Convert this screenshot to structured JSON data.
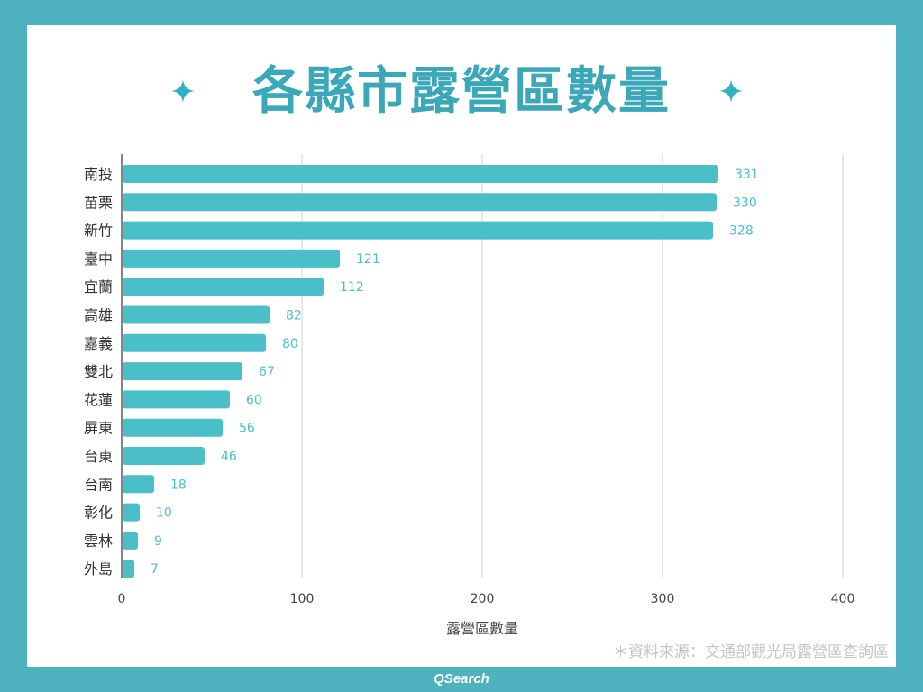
{
  "title": "各縣市露營區數量",
  "source_note": "＊資料來源：交通部觀光局露營區查詢區",
  "brand": "QSearch",
  "colors": {
    "background": "#4fb2bf",
    "bar": "#4bbfc8",
    "title": "#3aa8b8",
    "label": "#4bbfc8",
    "grid": "#d0d0d0"
  },
  "icons": [
    "sparkle-icon"
  ],
  "chart_data": {
    "type": "bar",
    "orientation": "horizontal",
    "categories": [
      "南投",
      "苗栗",
      "新竹",
      "臺中",
      "宜蘭",
      "高雄",
      "嘉義",
      "雙北",
      "花蓮",
      "屏東",
      "台東",
      "台南",
      "彰化",
      "雲林",
      "外島"
    ],
    "values": [
      331,
      330,
      328,
      121,
      112,
      82,
      80,
      67,
      60,
      56,
      46,
      18,
      10,
      9,
      7
    ],
    "xlabel": "露營區數量",
    "ylabel": "",
    "xlim": [
      0,
      400
    ],
    "xticks": [
      0,
      100,
      200,
      300,
      400
    ],
    "grid": true,
    "data_labels": true
  }
}
